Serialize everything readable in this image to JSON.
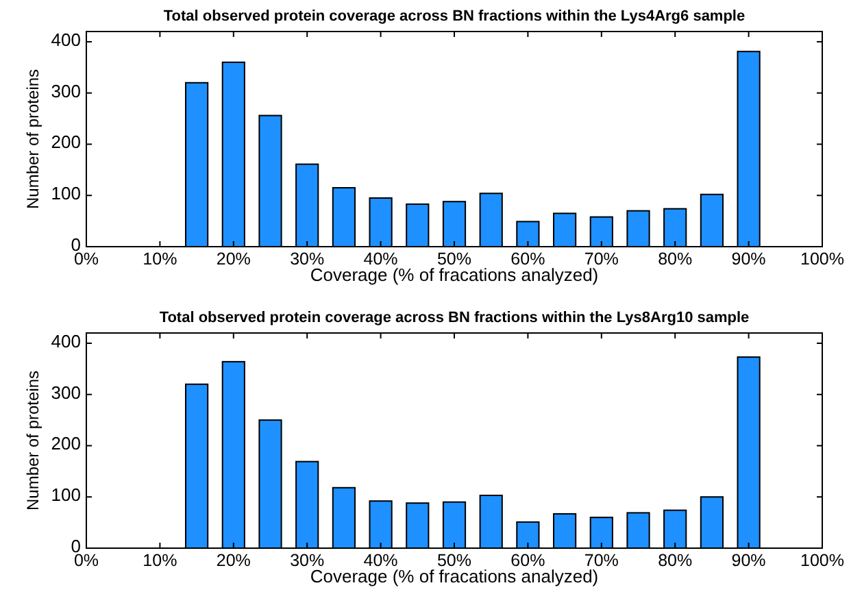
{
  "chart_data": [
    {
      "type": "bar",
      "title": "Total observed protein coverage across BN fractions within the Lys4Arg6 sample",
      "xlabel": "Coverage (% of fracations analyzed)",
      "ylabel": "Number of proteins",
      "x": [
        5,
        10,
        15,
        20,
        25,
        30,
        35,
        40,
        45,
        50,
        55,
        60,
        65,
        70,
        75,
        80,
        85,
        90,
        95,
        100
      ],
      "values": [
        0,
        0,
        320,
        360,
        256,
        161,
        115,
        95,
        83,
        88,
        104,
        49,
        65,
        58,
        70,
        74,
        102,
        381,
        0,
        0
      ],
      "color": "#1e90ff",
      "xlim": [
        0,
        100
      ],
      "ylim": [
        0,
        420
      ],
      "xticks": [
        {
          "value": 0,
          "label": "0%"
        },
        {
          "value": 10,
          "label": "10%"
        },
        {
          "value": 20,
          "label": "20%"
        },
        {
          "value": 30,
          "label": "30%"
        },
        {
          "value": 40,
          "label": "40%"
        },
        {
          "value": 50,
          "label": "50%"
        },
        {
          "value": 60,
          "label": "60%"
        },
        {
          "value": 70,
          "label": "70%"
        },
        {
          "value": 80,
          "label": "80%"
        },
        {
          "value": 90,
          "label": "90%"
        },
        {
          "value": 100,
          "label": "100%"
        }
      ],
      "yticks": [
        0,
        100,
        200,
        300,
        400
      ],
      "grid": false
    },
    {
      "type": "bar",
      "title": "Total observed protein coverage across BN fractions within the Lys8Arg10 sample",
      "xlabel": "Coverage (% of fracations analyzed)",
      "ylabel": "Number of proteins",
      "x": [
        5,
        10,
        15,
        20,
        25,
        30,
        35,
        40,
        45,
        50,
        55,
        60,
        65,
        70,
        75,
        80,
        85,
        90,
        95,
        100
      ],
      "values": [
        0,
        0,
        320,
        364,
        250,
        169,
        118,
        92,
        88,
        90,
        103,
        51,
        67,
        60,
        69,
        74,
        100,
        373,
        0,
        0
      ],
      "color": "#1e90ff",
      "xlim": [
        0,
        100
      ],
      "ylim": [
        0,
        420
      ],
      "xticks": [
        {
          "value": 0,
          "label": "0%"
        },
        {
          "value": 10,
          "label": "10%"
        },
        {
          "value": 20,
          "label": "20%"
        },
        {
          "value": 30,
          "label": "30%"
        },
        {
          "value": 40,
          "label": "40%"
        },
        {
          "value": 50,
          "label": "50%"
        },
        {
          "value": 60,
          "label": "60%"
        },
        {
          "value": 70,
          "label": "70%"
        },
        {
          "value": 80,
          "label": "80%"
        },
        {
          "value": 90,
          "label": "90%"
        },
        {
          "value": 100,
          "label": "100%"
        }
      ],
      "yticks": [
        0,
        100,
        200,
        300,
        400
      ],
      "grid": false
    }
  ]
}
